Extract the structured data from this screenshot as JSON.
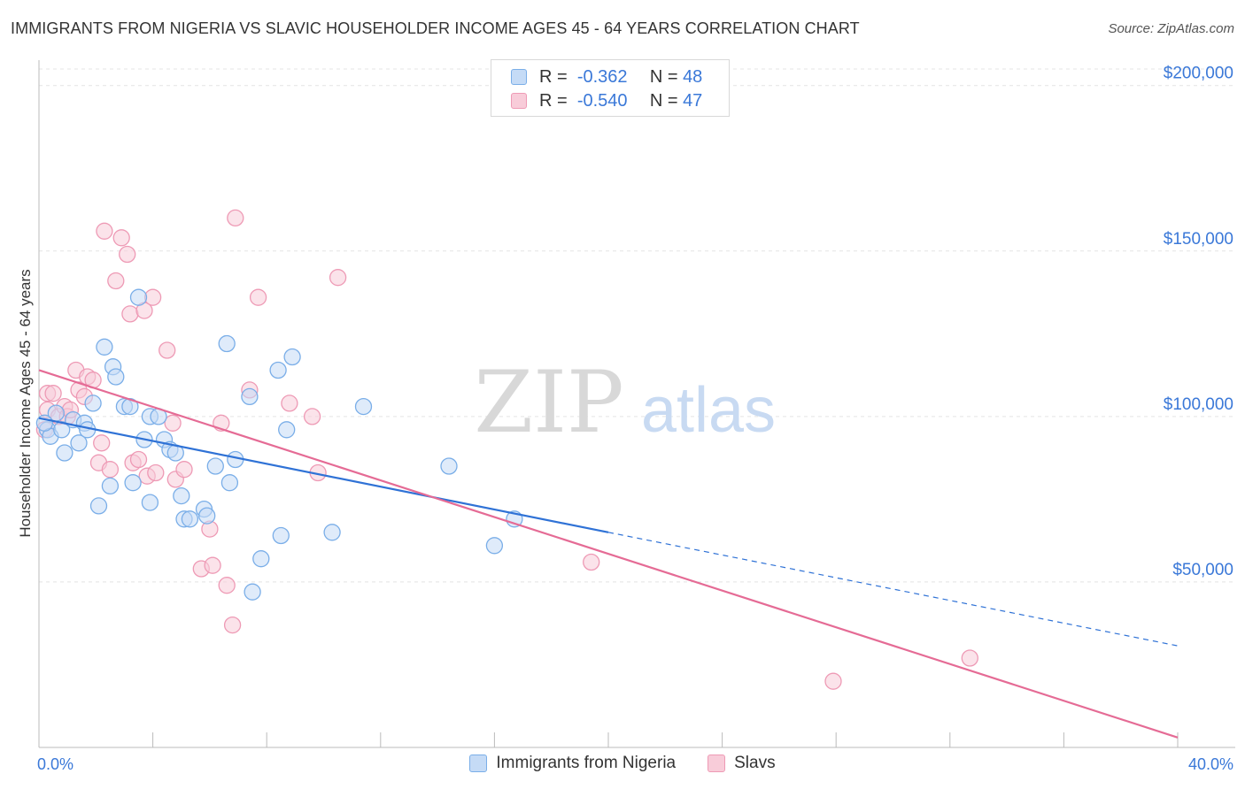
{
  "header": {
    "title": "IMMIGRANTS FROM NIGERIA VS SLAVIC HOUSEHOLDER INCOME AGES 45 - 64 YEARS CORRELATION CHART",
    "source": "Source: ZipAtlas.com"
  },
  "watermark": {
    "zip": "ZIP",
    "atlas": "atlas"
  },
  "legend": {
    "r_label": "R =",
    "n_label": "N =",
    "rows": [
      {
        "r": "-0.362",
        "n": "48"
      },
      {
        "r": "-0.540",
        "n": "47"
      }
    ]
  },
  "chart_data": {
    "type": "scatter",
    "title": "IMMIGRANTS FROM NIGERIA VS SLAVIC HOUSEHOLDER INCOME AGES 45 - 64 YEARS CORRELATION CHART",
    "xlabel": "",
    "ylabel": "Householder Income Ages 45 - 64 years",
    "xlim": [
      0,
      40
    ],
    "ylim": [
      0,
      205000
    ],
    "x_tick_labels": [
      {
        "value": 0,
        "label": "0.0%"
      },
      {
        "value": 40,
        "label": "40.0%"
      }
    ],
    "y_ticks": [
      {
        "value": 50000,
        "label": "$50,000"
      },
      {
        "value": 100000,
        "label": "$100,000"
      },
      {
        "value": 150000,
        "label": "$150,000"
      },
      {
        "value": 200000,
        "label": "$200,000"
      }
    ],
    "grid": true,
    "legend_position": "top-center",
    "series": [
      {
        "name": "Immigrants from Nigeria",
        "color": "#7aaee8",
        "fill": "#c5dbf6",
        "line_color": "#2f72d6",
        "r": -0.362,
        "n": 48,
        "trend": {
          "x0": 0,
          "y0": 99500,
          "x1": 20,
          "y1": 65000,
          "dash_to_x": 40,
          "dash_to_y": 30700
        },
        "points": [
          [
            0.3,
            96000
          ],
          [
            0.4,
            94000
          ],
          [
            0.6,
            101000
          ],
          [
            0.8,
            96000
          ],
          [
            0.9,
            89000
          ],
          [
            1.2,
            99000
          ],
          [
            1.4,
            92000
          ],
          [
            1.6,
            98000
          ],
          [
            1.7,
            96000
          ],
          [
            1.9,
            104000
          ],
          [
            2.1,
            73000
          ],
          [
            2.3,
            121000
          ],
          [
            2.5,
            79000
          ],
          [
            2.6,
            115000
          ],
          [
            2.7,
            112000
          ],
          [
            3.0,
            103000
          ],
          [
            3.2,
            103000
          ],
          [
            3.3,
            80000
          ],
          [
            3.5,
            136000
          ],
          [
            3.7,
            93000
          ],
          [
            3.9,
            74000
          ],
          [
            3.9,
            100000
          ],
          [
            4.2,
            100000
          ],
          [
            4.4,
            93000
          ],
          [
            4.6,
            90000
          ],
          [
            4.8,
            89000
          ],
          [
            5.0,
            76000
          ],
          [
            5.1,
            69000
          ],
          [
            5.3,
            69000
          ],
          [
            5.8,
            72000
          ],
          [
            5.9,
            70000
          ],
          [
            6.2,
            85000
          ],
          [
            6.6,
            122000
          ],
          [
            6.7,
            80000
          ],
          [
            6.9,
            87000
          ],
          [
            7.4,
            106000
          ],
          [
            7.5,
            47000
          ],
          [
            7.8,
            57000
          ],
          [
            8.4,
            114000
          ],
          [
            8.5,
            64000
          ],
          [
            8.7,
            96000
          ],
          [
            8.9,
            118000
          ],
          [
            10.3,
            65000
          ],
          [
            11.4,
            103000
          ],
          [
            14.4,
            85000
          ],
          [
            16.0,
            61000
          ],
          [
            16.7,
            69000
          ],
          [
            0.2,
            98000
          ]
        ]
      },
      {
        "name": "Slavs",
        "color": "#ee9ab5",
        "fill": "#f8ccd9",
        "line_color": "#e56b95",
        "r": -0.54,
        "n": 47,
        "trend": {
          "x0": 0,
          "y0": 114000,
          "x1": 40,
          "y1": 3000
        },
        "points": [
          [
            0.2,
            96000
          ],
          [
            0.3,
            102000
          ],
          [
            0.3,
            107000
          ],
          [
            0.5,
            107000
          ],
          [
            0.7,
            100000
          ],
          [
            0.9,
            103000
          ],
          [
            1.0,
            100000
          ],
          [
            1.1,
            102000
          ],
          [
            1.3,
            114000
          ],
          [
            1.4,
            108000
          ],
          [
            1.6,
            106000
          ],
          [
            1.7,
            112000
          ],
          [
            1.9,
            111000
          ],
          [
            2.1,
            86000
          ],
          [
            2.2,
            92000
          ],
          [
            2.3,
            156000
          ],
          [
            2.5,
            84000
          ],
          [
            2.7,
            141000
          ],
          [
            2.9,
            154000
          ],
          [
            3.1,
            149000
          ],
          [
            3.2,
            131000
          ],
          [
            3.3,
            86000
          ],
          [
            3.5,
            87000
          ],
          [
            3.7,
            132000
          ],
          [
            3.8,
            82000
          ],
          [
            4.0,
            136000
          ],
          [
            4.1,
            83000
          ],
          [
            4.5,
            120000
          ],
          [
            4.7,
            98000
          ],
          [
            4.8,
            81000
          ],
          [
            5.1,
            84000
          ],
          [
            5.7,
            54000
          ],
          [
            6.0,
            66000
          ],
          [
            6.1,
            55000
          ],
          [
            6.4,
            98000
          ],
          [
            6.6,
            49000
          ],
          [
            6.8,
            37000
          ],
          [
            6.9,
            160000
          ],
          [
            7.4,
            108000
          ],
          [
            7.7,
            136000
          ],
          [
            8.8,
            104000
          ],
          [
            9.6,
            100000
          ],
          [
            9.8,
            83000
          ],
          [
            10.5,
            142000
          ],
          [
            19.4,
            56000
          ],
          [
            27.9,
            20000
          ],
          [
            32.7,
            27000
          ]
        ]
      }
    ]
  }
}
